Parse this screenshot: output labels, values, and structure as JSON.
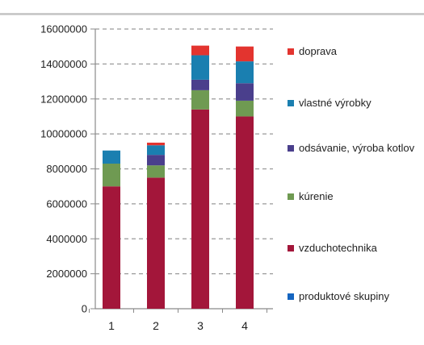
{
  "chart_data": {
    "type": "bar",
    "stacked": true,
    "title": "",
    "xlabel": "",
    "ylabel": "",
    "categories": [
      "1",
      "2",
      "3",
      "4"
    ],
    "ylim": [
      0,
      16000000
    ],
    "yticks": [
      "0",
      "2000000",
      "4000000",
      "6000000",
      "8000000",
      "10000000",
      "12000000",
      "14000000",
      "16000000"
    ],
    "ytick_values": [
      0,
      2000000,
      4000000,
      6000000,
      8000000,
      10000000,
      12000000,
      14000000,
      16000000
    ],
    "grid": "horizontal dashed",
    "legend_position": "right",
    "series": [
      {
        "name": "vzduchotechnika",
        "color": "#a3163a",
        "values": [
          7000000,
          7500000,
          11400000,
          11000000
        ]
      },
      {
        "name": "kúrenie",
        "color": "#6f9a52",
        "values": [
          1300000,
          700000,
          1100000,
          900000
        ]
      },
      {
        "name": "odsávanie, výroba kotlov",
        "color": "#4a3f8c",
        "values": [
          0,
          600000,
          600000,
          1000000
        ]
      },
      {
        "name": "vlastné výrobky",
        "color": "#1a7fb0",
        "values": [
          750000,
          550000,
          1400000,
          1250000
        ]
      },
      {
        "name": "doprava",
        "color": "#e3342f",
        "values": [
          0,
          150000,
          550000,
          850000
        ]
      },
      {
        "name": "produktové skupiny",
        "color": "#1565c0",
        "values": [
          0,
          0,
          0,
          0
        ]
      }
    ],
    "legend_order": [
      "doprava",
      "vlastné výrobky",
      "odsávanie, výroba kotlov",
      "kúrenie",
      "vzduchotechnika",
      "produktové skupiny"
    ]
  }
}
